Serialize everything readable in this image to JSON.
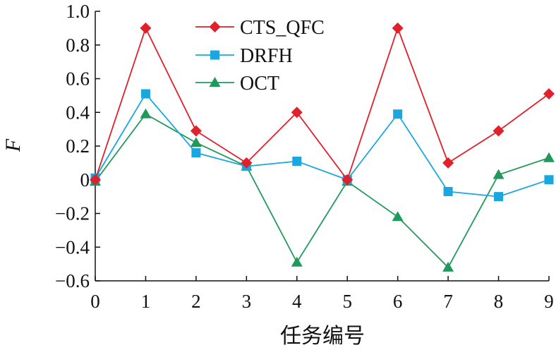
{
  "chart_data": {
    "type": "line",
    "title": "",
    "xlabel": "任务编号",
    "ylabel": "F",
    "x": [
      0,
      1,
      2,
      3,
      4,
      5,
      6,
      7,
      8,
      9
    ],
    "xlim": [
      0,
      9
    ],
    "ylim": [
      -0.6,
      1.0
    ],
    "yticks": [
      -0.6,
      -0.4,
      -0.2,
      0,
      0.2,
      0.4,
      0.6,
      0.8,
      1.0
    ],
    "ytick_labels": [
      "−0.6",
      "−0.4",
      "−0.2",
      "0",
      "0.2",
      "0.4",
      "0.6",
      "0.8",
      "1.0"
    ],
    "xtick_labels": [
      "0",
      "1",
      "2",
      "3",
      "4",
      "5",
      "6",
      "7",
      "8",
      "9"
    ],
    "grid": false,
    "legend_position": "top-center",
    "series": [
      {
        "name": "CTS_QFC",
        "color": "#e0202a",
        "marker": "diamond",
        "values": [
          0.0,
          0.9,
          0.29,
          0.1,
          0.4,
          0.0,
          0.9,
          0.1,
          0.29,
          0.51
        ]
      },
      {
        "name": "DRFH",
        "color": "#1aa7e0",
        "marker": "square",
        "values": [
          0.01,
          0.51,
          0.16,
          0.08,
          0.11,
          0.0,
          0.39,
          -0.07,
          -0.1,
          0.0
        ]
      },
      {
        "name": "OCT",
        "color": "#1f9a5a",
        "marker": "triangle",
        "values": [
          -0.01,
          0.39,
          0.22,
          0.08,
          -0.49,
          -0.01,
          -0.22,
          -0.52,
          0.03,
          0.13
        ]
      }
    ]
  }
}
